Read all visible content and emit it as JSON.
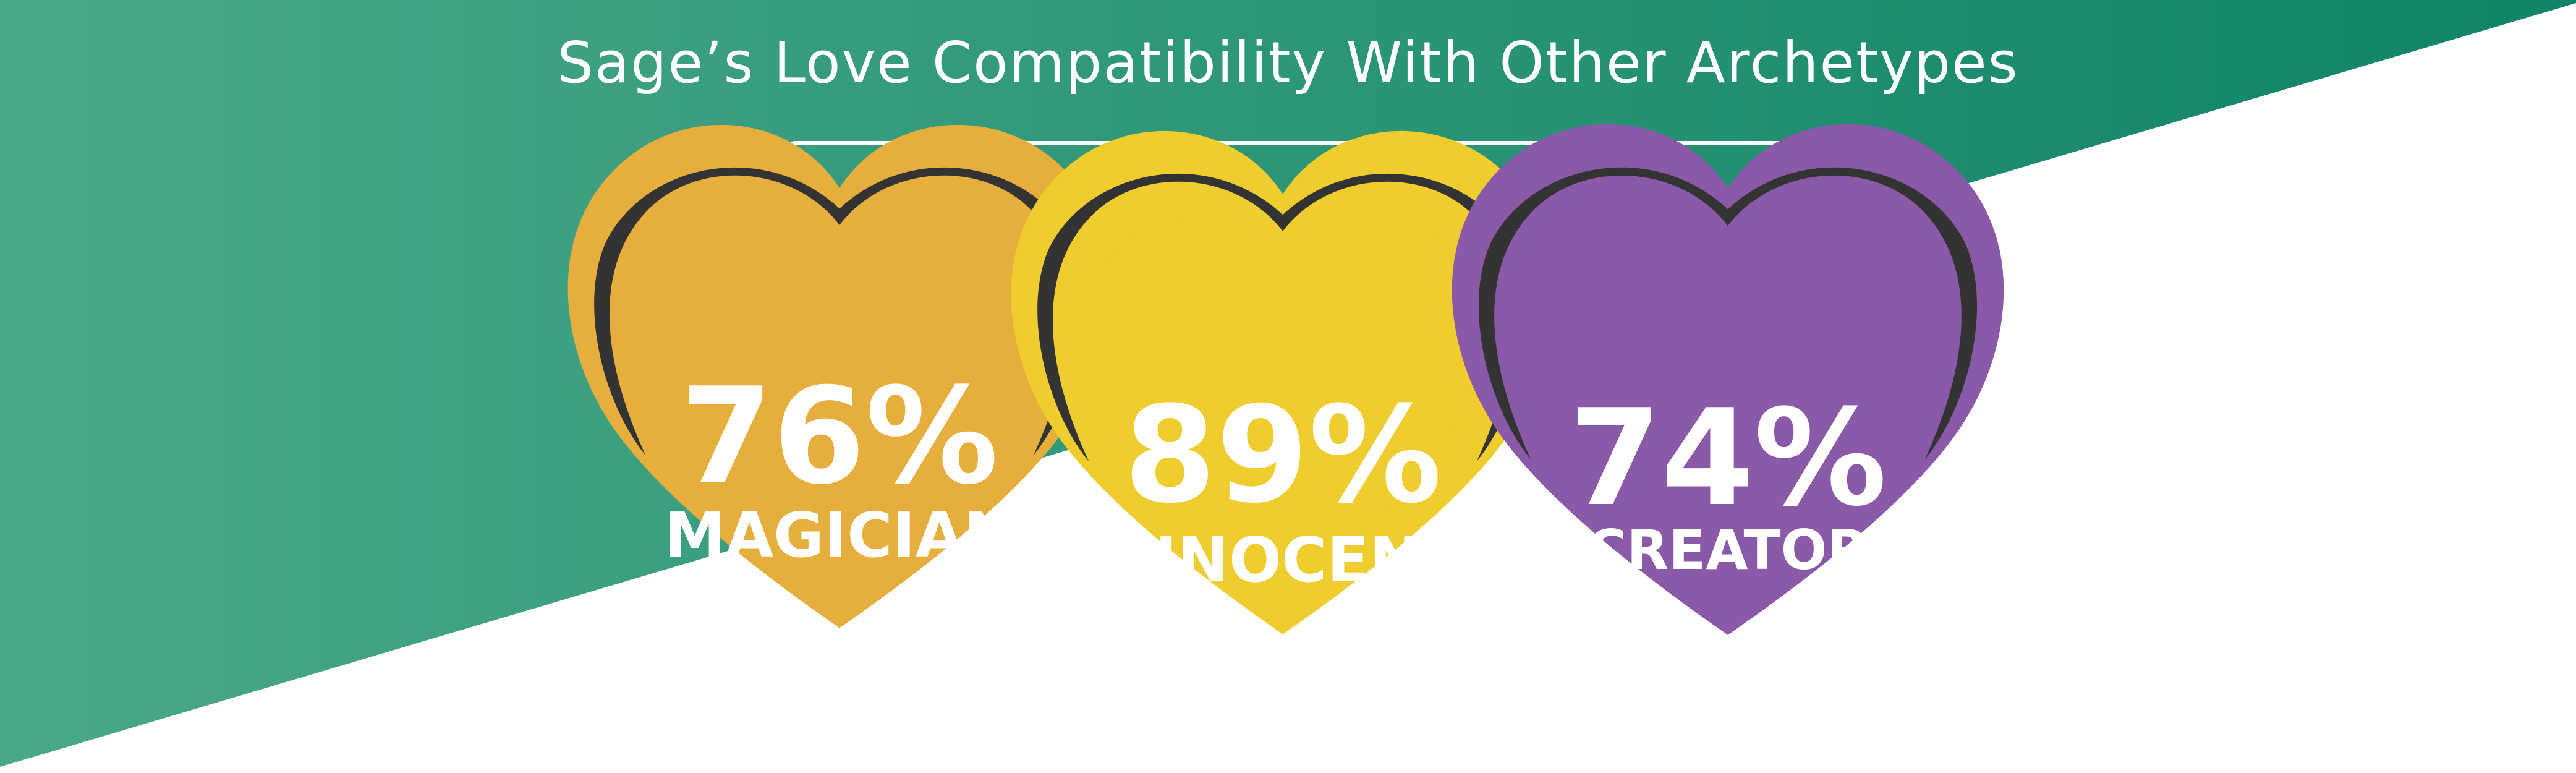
{
  "title": "Sage’s Love Compatibility With Other Archetypes",
  "colors": {
    "banner_left": "#4aa889",
    "banner_right": "#0f8466",
    "background": "#ffffff",
    "heart_shadow": "#333333",
    "divider": "#ffffff",
    "text": "#ffffff"
  },
  "archetypes": [
    {
      "percent": "76%",
      "value": 76,
      "name": "MAGICIAN",
      "fill": "#e6ae3c",
      "border": "#e6ae3c"
    },
    {
      "percent": "89%",
      "value": 89,
      "name": "INNOCENT",
      "fill": "#efcd2f",
      "border": "#efcd2f"
    },
    {
      "percent": "74%",
      "value": 74,
      "name": "CREATOR",
      "fill": "#8a5aa8",
      "border": "#8a5aa8"
    }
  ]
}
